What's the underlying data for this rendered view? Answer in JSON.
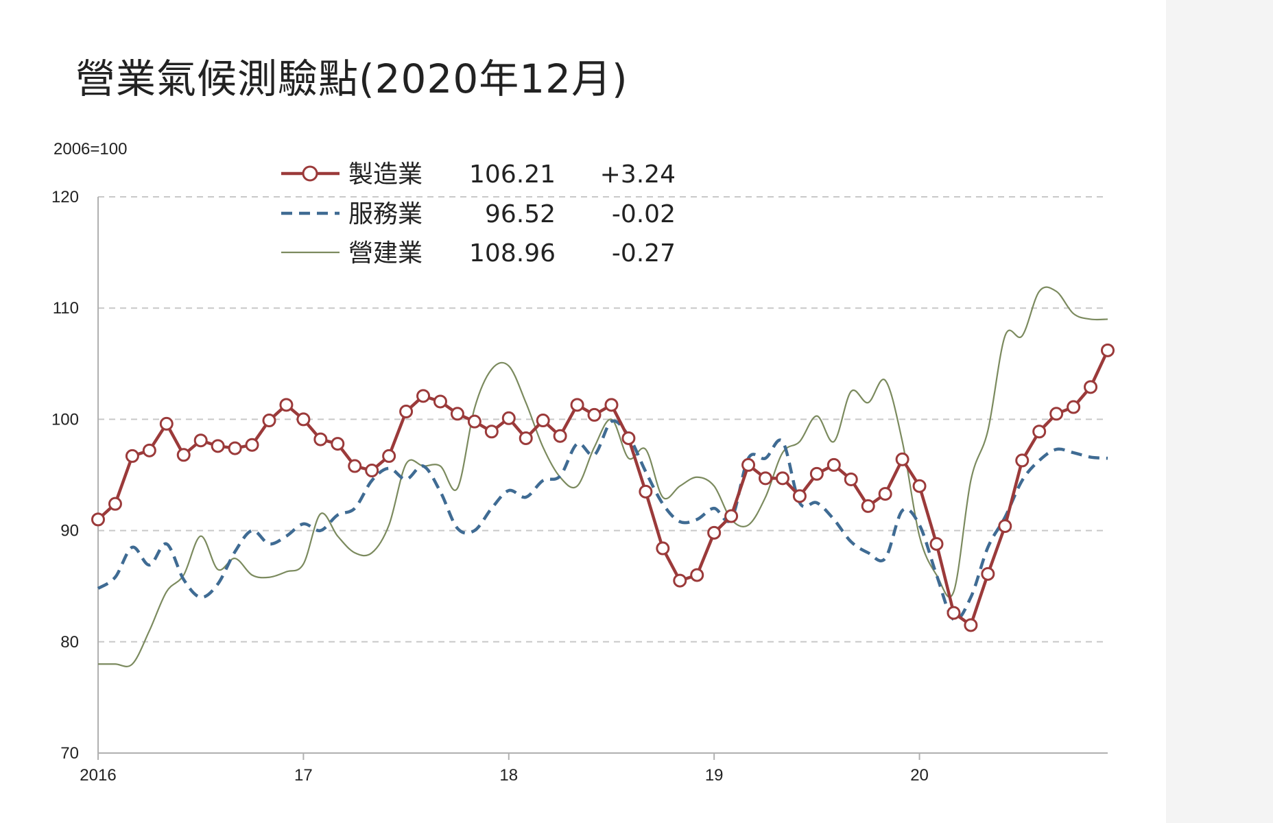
{
  "chart_data": {
    "type": "line",
    "title": "營業氣候測驗點(2020年12月)",
    "ylabel": "2006=100",
    "ylim": [
      70,
      120
    ],
    "yticks": [
      70,
      80,
      90,
      100,
      110,
      120
    ],
    "xticks": [
      {
        "label": "2016",
        "month": 0
      },
      {
        "label": "17",
        "month": 12
      },
      {
        "label": "18",
        "month": 24
      },
      {
        "label": "19",
        "month": 36
      },
      {
        "label": "20",
        "month": 48
      }
    ],
    "x_start": "2016-01",
    "x_end": "2020-12",
    "grid": "horizontal-dashed",
    "legend_position": "top-left",
    "series": [
      {
        "name": "製造業",
        "latest": "106.21",
        "change": "+3.24",
        "color": "#9b3a3a",
        "style": "solid-markers",
        "values": [
          91.0,
          92.4,
          96.7,
          97.2,
          99.6,
          96.8,
          98.1,
          97.6,
          97.4,
          97.7,
          99.9,
          101.3,
          100.0,
          98.2,
          97.8,
          95.8,
          95.4,
          96.7,
          100.7,
          102.1,
          101.6,
          100.5,
          99.8,
          98.9,
          100.1,
          98.3,
          99.9,
          98.5,
          101.3,
          100.4,
          101.3,
          98.3,
          93.5,
          88.4,
          85.5,
          86.0,
          89.8,
          91.3,
          95.9,
          94.7,
          94.7,
          93.1,
          95.1,
          95.9,
          94.6,
          92.2,
          93.3,
          96.4,
          94.0,
          88.8,
          82.6,
          81.5,
          86.1,
          90.4,
          96.3,
          98.9,
          100.5,
          101.1,
          102.9,
          106.2
        ]
      },
      {
        "name": "服務業",
        "latest": "96.52",
        "change": "-0.02",
        "color": "#3f6b93",
        "style": "dashed",
        "values": [
          84.8,
          85.8,
          88.5,
          86.9,
          88.8,
          85.6,
          84.0,
          85.2,
          88.1,
          90.0,
          88.8,
          89.5,
          90.6,
          90.0,
          91.4,
          92.0,
          94.5,
          95.6,
          94.6,
          95.8,
          93.5,
          90.2,
          90.0,
          92.0,
          93.6,
          93.0,
          94.5,
          94.9,
          97.8,
          96.8,
          99.8,
          98.5,
          95.3,
          92.4,
          90.8,
          91.0,
          92.0,
          91.0,
          96.5,
          96.5,
          98.0,
          92.5,
          92.5,
          91.0,
          89.0,
          88.0,
          87.5,
          91.8,
          90.5,
          86.0,
          82.0,
          84.0,
          88.5,
          91.2,
          94.5,
          96.3,
          97.3,
          97.0,
          96.6,
          96.5
        ]
      },
      {
        "name": "營建業",
        "latest": "108.96",
        "change": "-0.27",
        "color": "#7b8a5e",
        "style": "thin",
        "values": [
          78.0,
          78.0,
          78.0,
          81.0,
          84.5,
          86.0,
          89.5,
          86.5,
          87.5,
          86.0,
          85.8,
          86.3,
          87.0,
          91.5,
          89.5,
          88.0,
          88.0,
          90.5,
          96.0,
          95.8,
          95.8,
          93.8,
          101.0,
          104.5,
          104.8,
          101.5,
          97.5,
          94.8,
          94.0,
          97.5,
          100.0,
          96.5,
          97.3,
          93.0,
          94.0,
          94.8,
          94.0,
          91.0,
          90.5,
          93.0,
          97.0,
          98.0,
          100.3,
          98.0,
          102.5,
          101.5,
          103.5,
          98.0,
          89.5,
          86.0,
          84.5,
          94.5,
          99.0,
          107.5,
          107.5,
          111.5,
          111.5,
          109.5,
          109.0,
          109.0
        ]
      }
    ]
  }
}
